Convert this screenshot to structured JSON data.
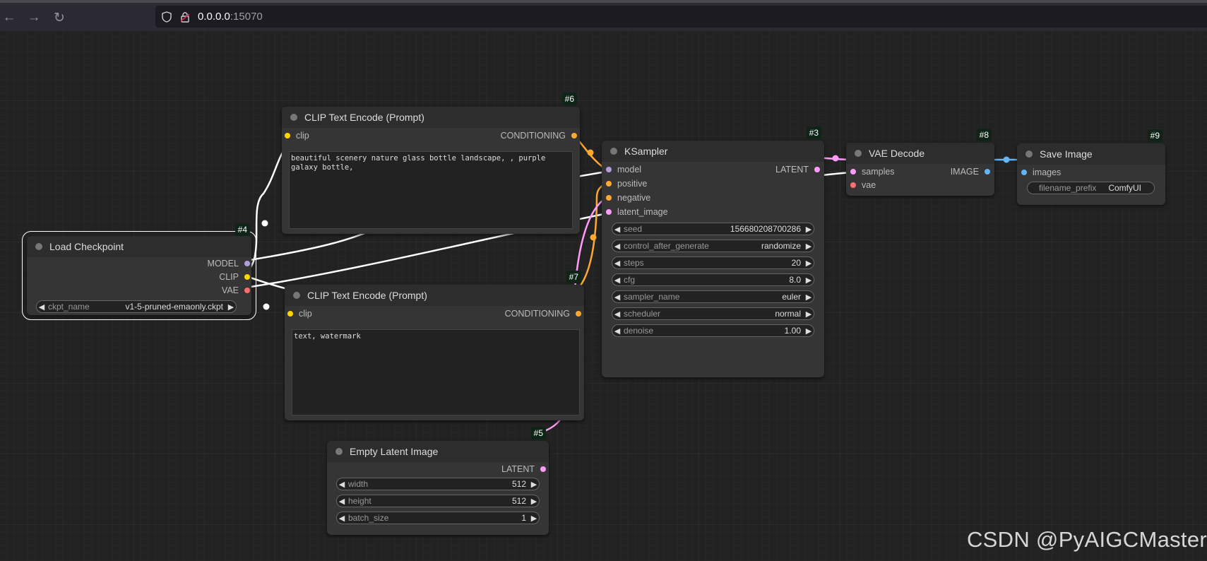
{
  "browser": {
    "url_host": "0.0.0.0",
    "url_port": ":15070",
    "back_icon": "arrow-left-icon",
    "forward_icon": "arrow-right-icon",
    "reload_icon": "reload-icon"
  },
  "colors": {
    "model": "#b39ddb",
    "clip": "#ffd500",
    "vae": "#ff6e6e",
    "conditioning": "#ffa931",
    "latent": "#ff9cf9",
    "image": "#64b5f6"
  },
  "nodes": {
    "load_checkpoint": {
      "badge": "#4",
      "title": "Load Checkpoint",
      "outputs": [
        "MODEL",
        "CLIP",
        "VAE"
      ],
      "ckpt_name": {
        "label": "ckpt_name",
        "value": "v1-5-pruned-emaonly.ckpt"
      }
    },
    "clip_pos": {
      "badge": "#6",
      "title": "CLIP Text Encode (Prompt)",
      "input": "clip",
      "output": "CONDITIONING",
      "text": "beautiful scenery nature glass bottle landscape, , purple galaxy bottle,"
    },
    "clip_neg": {
      "badge": "#7",
      "title": "CLIP Text Encode (Prompt)",
      "input": "clip",
      "output": "CONDITIONING",
      "text": "text, watermark"
    },
    "ksampler": {
      "badge": "#3",
      "title": "KSampler",
      "inputs": [
        "model",
        "positive",
        "negative",
        "latent_image"
      ],
      "output": "LATENT",
      "widgets": [
        {
          "label": "seed",
          "value": "156680208700286"
        },
        {
          "label": "control_after_generate",
          "value": "randomize"
        },
        {
          "label": "steps",
          "value": "20"
        },
        {
          "label": "cfg",
          "value": "8.0"
        },
        {
          "label": "sampler_name",
          "value": "euler"
        },
        {
          "label": "scheduler",
          "value": "normal"
        },
        {
          "label": "denoise",
          "value": "1.00"
        }
      ]
    },
    "vae_decode": {
      "badge": "#8",
      "title": "VAE Decode",
      "inputs": [
        "samples",
        "vae"
      ],
      "output": "IMAGE"
    },
    "save_image": {
      "badge": "#9",
      "title": "Save Image",
      "input": "images",
      "filename_prefix": {
        "label": "filename_prefix",
        "value": "ComfyUI"
      }
    },
    "empty_latent": {
      "badge": "#5",
      "title": "Empty Latent Image",
      "output": "LATENT",
      "widgets": [
        {
          "label": "width",
          "value": "512"
        },
        {
          "label": "height",
          "value": "512"
        },
        {
          "label": "batch_size",
          "value": "1"
        }
      ]
    }
  },
  "watermark": "CSDN @PyAIGCMaster"
}
